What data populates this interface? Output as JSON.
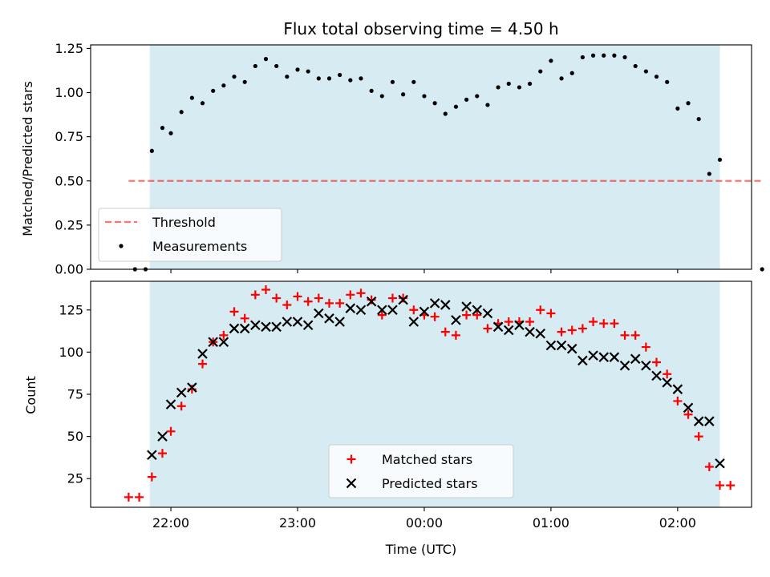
{
  "title": "Flux total observing time = 4.50 h",
  "colors": {
    "shade": "#add8e6",
    "threshold": "#ff0000",
    "measurements": "#000000",
    "matched": "#ff0000",
    "predicted": "#000000"
  },
  "chart_data": [
    {
      "type": "scatter",
      "ylabel": "Matched/Predicted stars",
      "xlabel": "",
      "xlim": [
        "21:22",
        "02:35"
      ],
      "ylim": [
        0.0,
        1.27
      ],
      "yticks": [
        "0.00",
        "0.25",
        "0.50",
        "0.75",
        "1.00",
        "1.25"
      ],
      "shaded_span": [
        "21:50",
        "02:20"
      ],
      "legend": {
        "position": "lower left",
        "entries": [
          "Threshold",
          "Measurements"
        ]
      },
      "threshold": {
        "name": "Threshold",
        "value": 0.5,
        "x_range": [
          "21:40",
          "02:40"
        ],
        "style": "dashed"
      },
      "series": [
        {
          "name": "Measurements",
          "marker": "dot",
          "points": [
            [
              "21:43",
              0.0
            ],
            [
              "21:48",
              0.0
            ],
            [
              "21:51",
              0.67
            ],
            [
              "21:56",
              0.8
            ],
            [
              "22:00",
              0.77
            ],
            [
              "22:05",
              0.89
            ],
            [
              "22:10",
              0.97
            ],
            [
              "22:15",
              0.94
            ],
            [
              "22:20",
              1.01
            ],
            [
              "22:25",
              1.04
            ],
            [
              "22:30",
              1.09
            ],
            [
              "22:35",
              1.06
            ],
            [
              "22:40",
              1.15
            ],
            [
              "22:45",
              1.19
            ],
            [
              "22:50",
              1.15
            ],
            [
              "22:55",
              1.09
            ],
            [
              "23:00",
              1.13
            ],
            [
              "23:05",
              1.12
            ],
            [
              "23:10",
              1.08
            ],
            [
              "23:15",
              1.08
            ],
            [
              "23:20",
              1.1
            ],
            [
              "23:25",
              1.07
            ],
            [
              "23:30",
              1.08
            ],
            [
              "23:35",
              1.01
            ],
            [
              "23:40",
              0.98
            ],
            [
              "23:45",
              1.06
            ],
            [
              "23:50",
              0.99
            ],
            [
              "23:55",
              1.06
            ],
            [
              "00:00",
              0.98
            ],
            [
              "00:05",
              0.94
            ],
            [
              "00:10",
              0.88
            ],
            [
              "00:15",
              0.92
            ],
            [
              "00:20",
              0.96
            ],
            [
              "00:25",
              0.98
            ],
            [
              "00:30",
              0.93
            ],
            [
              "00:35",
              1.03
            ],
            [
              "00:40",
              1.05
            ],
            [
              "00:45",
              1.03
            ],
            [
              "00:50",
              1.05
            ],
            [
              "00:55",
              1.12
            ],
            [
              "01:00",
              1.18
            ],
            [
              "01:05",
              1.08
            ],
            [
              "01:10",
              1.11
            ],
            [
              "01:15",
              1.2
            ],
            [
              "01:20",
              1.21
            ],
            [
              "01:25",
              1.21
            ],
            [
              "01:30",
              1.21
            ],
            [
              "01:35",
              1.2
            ],
            [
              "01:40",
              1.15
            ],
            [
              "01:45",
              1.12
            ],
            [
              "01:50",
              1.09
            ],
            [
              "01:55",
              1.06
            ],
            [
              "02:00",
              0.91
            ],
            [
              "02:05",
              0.94
            ],
            [
              "02:10",
              0.85
            ],
            [
              "02:15",
              0.54
            ],
            [
              "02:20",
              0.62
            ],
            [
              "02:40",
              0.0
            ]
          ]
        }
      ]
    },
    {
      "type": "scatter",
      "ylabel": "Count",
      "xlabel": "Time (UTC)",
      "xlim": [
        "21:22",
        "02:35"
      ],
      "ylim": [
        8,
        142
      ],
      "yticks": [
        "25",
        "50",
        "75",
        "100",
        "125"
      ],
      "xticks": [
        "22:00",
        "23:00",
        "00:00",
        "01:00",
        "02:00"
      ],
      "shaded_span": [
        "21:50",
        "02:20"
      ],
      "legend": {
        "position": "lower center",
        "entries": [
          "Matched stars",
          "Predicted stars"
        ]
      },
      "series": [
        {
          "name": "Matched stars",
          "marker": "plus",
          "points": [
            [
              "21:40",
              14
            ],
            [
              "21:45",
              14
            ],
            [
              "21:51",
              26
            ],
            [
              "21:56",
              40
            ],
            [
              "22:00",
              53
            ],
            [
              "22:05",
              68
            ],
            [
              "22:10",
              78
            ],
            [
              "22:15",
              93
            ],
            [
              "22:20",
              106
            ],
            [
              "22:25",
              110
            ],
            [
              "22:30",
              124
            ],
            [
              "22:35",
              120
            ],
            [
              "22:40",
              134
            ],
            [
              "22:45",
              137
            ],
            [
              "22:50",
              132
            ],
            [
              "22:55",
              128
            ],
            [
              "23:00",
              133
            ],
            [
              "23:05",
              130
            ],
            [
              "23:10",
              132
            ],
            [
              "23:15",
              129
            ],
            [
              "23:20",
              129
            ],
            [
              "23:25",
              134
            ],
            [
              "23:30",
              135
            ],
            [
              "23:35",
              131
            ],
            [
              "23:40",
              122
            ],
            [
              "23:45",
              132
            ],
            [
              "23:50",
              132
            ],
            [
              "23:55",
              125
            ],
            [
              "00:00",
              122
            ],
            [
              "00:05",
              121
            ],
            [
              "00:10",
              112
            ],
            [
              "00:15",
              110
            ],
            [
              "00:20",
              122
            ],
            [
              "00:25",
              122
            ],
            [
              "00:30",
              114
            ],
            [
              "00:35",
              117
            ],
            [
              "00:40",
              118
            ],
            [
              "00:45",
              118
            ],
            [
              "00:50",
              118
            ],
            [
              "00:55",
              125
            ],
            [
              "01:00",
              123
            ],
            [
              "01:05",
              112
            ],
            [
              "01:10",
              113
            ],
            [
              "01:15",
              114
            ],
            [
              "01:20",
              118
            ],
            [
              "01:25",
              117
            ],
            [
              "01:30",
              117
            ],
            [
              "01:35",
              110
            ],
            [
              "01:40",
              110
            ],
            [
              "01:45",
              103
            ],
            [
              "01:50",
              94
            ],
            [
              "01:55",
              87
            ],
            [
              "02:00",
              71
            ],
            [
              "02:05",
              63
            ],
            [
              "02:10",
              50
            ],
            [
              "02:15",
              32
            ],
            [
              "02:20",
              21
            ],
            [
              "02:25",
              21
            ]
          ]
        },
        {
          "name": "Predicted stars",
          "marker": "x",
          "points": [
            [
              "21:51",
              39
            ],
            [
              "21:56",
              50
            ],
            [
              "22:00",
              69
            ],
            [
              "22:05",
              76
            ],
            [
              "22:10",
              79
            ],
            [
              "22:15",
              99
            ],
            [
              "22:20",
              106
            ],
            [
              "22:25",
              106
            ],
            [
              "22:30",
              114
            ],
            [
              "22:35",
              114
            ],
            [
              "22:40",
              116
            ],
            [
              "22:45",
              115
            ],
            [
              "22:50",
              115
            ],
            [
              "22:55",
              118
            ],
            [
              "23:00",
              118
            ],
            [
              "23:05",
              116
            ],
            [
              "23:10",
              123
            ],
            [
              "23:15",
              120
            ],
            [
              "23:20",
              118
            ],
            [
              "23:25",
              126
            ],
            [
              "23:30",
              125
            ],
            [
              "23:35",
              130
            ],
            [
              "23:40",
              125
            ],
            [
              "23:45",
              125
            ],
            [
              "23:50",
              131
            ],
            [
              "23:55",
              118
            ],
            [
              "00:00",
              124
            ],
            [
              "00:05",
              129
            ],
            [
              "00:10",
              128
            ],
            [
              "00:15",
              119
            ],
            [
              "00:20",
              127
            ],
            [
              "00:25",
              125
            ],
            [
              "00:30",
              123
            ],
            [
              "00:35",
              115
            ],
            [
              "00:40",
              113
            ],
            [
              "00:45",
              116
            ],
            [
              "00:50",
              112
            ],
            [
              "00:55",
              111
            ],
            [
              "01:00",
              104
            ],
            [
              "01:05",
              104
            ],
            [
              "01:10",
              102
            ],
            [
              "01:15",
              95
            ],
            [
              "01:20",
              98
            ],
            [
              "01:25",
              97
            ],
            [
              "01:30",
              97
            ],
            [
              "01:35",
              92
            ],
            [
              "01:40",
              96
            ],
            [
              "01:45",
              92
            ],
            [
              "01:50",
              86
            ],
            [
              "01:55",
              82
            ],
            [
              "02:00",
              78
            ],
            [
              "02:05",
              67
            ],
            [
              "02:10",
              59
            ],
            [
              "02:15",
              59
            ],
            [
              "02:20",
              34
            ]
          ]
        }
      ]
    }
  ]
}
